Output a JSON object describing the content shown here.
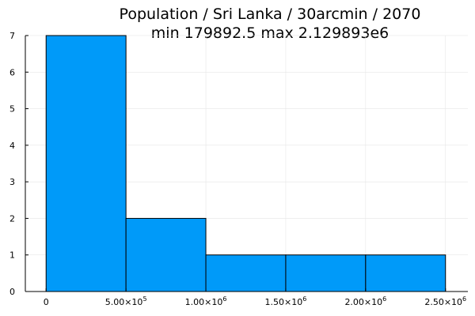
{
  "chart_data": {
    "type": "bar",
    "title": "Population / Sri Lanka / 30arcmin / 2070",
    "subtitle": "min 179892.5  max 2.129893e6",
    "xlabel": "",
    "ylabel": "",
    "bins": [
      {
        "x0": 0,
        "x1": 500000,
        "count": 7
      },
      {
        "x0": 500000,
        "x1": 1000000,
        "count": 2
      },
      {
        "x0": 1000000,
        "x1": 1500000,
        "count": 1
      },
      {
        "x0": 1500000,
        "x1": 2000000,
        "count": 1
      },
      {
        "x0": 2000000,
        "x1": 2500000,
        "count": 1
      }
    ],
    "xlim": [
      -130000,
      2640000
    ],
    "ylim": [
      0,
      7
    ],
    "x_ticks": [
      {
        "value": 0,
        "mantissa": "0",
        "exponent": ""
      },
      {
        "value": 500000,
        "mantissa": "5.00×10",
        "exponent": "5"
      },
      {
        "value": 1000000,
        "mantissa": "1.00×10",
        "exponent": "6"
      },
      {
        "value": 1500000,
        "mantissa": "1.50×10",
        "exponent": "6"
      },
      {
        "value": 2000000,
        "mantissa": "2.00×10",
        "exponent": "6"
      },
      {
        "value": 2500000,
        "mantissa": "2.50×10",
        "exponent": "6"
      }
    ],
    "y_ticks": [
      0,
      1,
      2,
      3,
      4,
      5,
      6,
      7
    ],
    "grid": true,
    "legend": "none",
    "colors": {
      "bar_fill": "#009af9",
      "bar_stroke": "#000000",
      "grid": "#e6e6e6",
      "axis": "#000000"
    }
  }
}
